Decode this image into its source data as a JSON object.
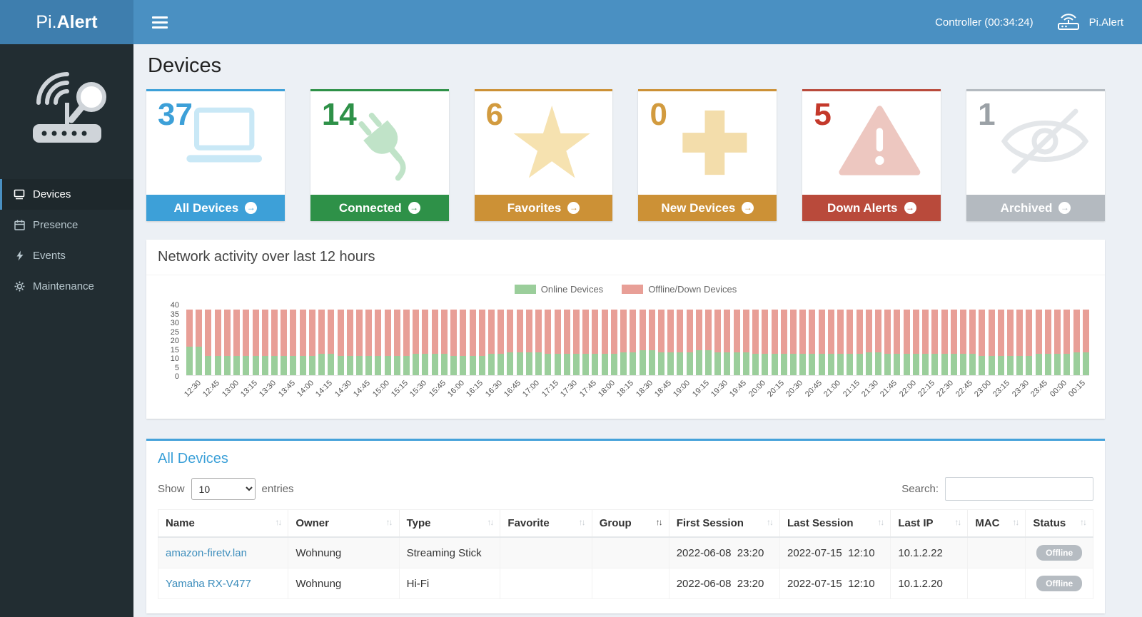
{
  "ui": {
    "arrow_icon": "→",
    "sort_icon": "↑↓"
  },
  "header": {
    "logo_prefix": "Pi.",
    "logo_suffix": "Alert",
    "controller_status": "Controller (00:34:24)",
    "brand": "Pi.Alert"
  },
  "sidebar": {
    "items": [
      {
        "label": "Devices"
      },
      {
        "label": "Presence"
      },
      {
        "label": "Events"
      },
      {
        "label": "Maintenance"
      }
    ]
  },
  "page": {
    "title": "Devices"
  },
  "cards": [
    {
      "value": "37",
      "label": "All Devices",
      "icon": "laptop-icon",
      "color": "#3da0d8",
      "value_color": "#3da0d8",
      "icon_color": "#c9e8f6"
    },
    {
      "value": "14",
      "label": "Connected",
      "icon": "plug-icon",
      "color": "#2e9148",
      "value_color": "#2e9148",
      "icon_color": "#c0e3c8"
    },
    {
      "value": "6",
      "label": "Favorites",
      "icon": "star-icon",
      "color": "#cc9136",
      "value_color": "#d29b3f",
      "icon_color": "#f6e2b0"
    },
    {
      "value": "0",
      "label": "New Devices",
      "icon": "plus-icon",
      "color": "#cc9136",
      "value_color": "#d29b3f",
      "icon_color": "#f3ddab"
    },
    {
      "value": "5",
      "label": "Down Alerts",
      "icon": "warning-triangle-icon",
      "color": "#b94a3b",
      "value_color": "#c4392b",
      "icon_color": "#edc7c0"
    },
    {
      "value": "1",
      "label": "Archived",
      "icon": "eye-slash-icon",
      "color": "#b4bac0",
      "value_color": "#9ba1a6",
      "icon_color": "#e3e6e9"
    }
  ],
  "chart_data": {
    "type": "bar",
    "stacked": true,
    "title": "Network activity over last 12 hours",
    "legend": [
      "Online Devices",
      "Offline/Down Devices"
    ],
    "colors": {
      "online": "#9bce9b",
      "offline": "#e89f97"
    },
    "ylim": [
      0,
      40
    ],
    "yticks": [
      40,
      35,
      30,
      25,
      20,
      15,
      10,
      5,
      0
    ],
    "x": [
      "12:30",
      "12:45",
      "13:00",
      "13:15",
      "13:30",
      "13:45",
      "14:00",
      "14:15",
      "14:30",
      "14:45",
      "15:00",
      "15:15",
      "15:30",
      "15:45",
      "16:00",
      "16:15",
      "16:30",
      "16:45",
      "17:00",
      "17:15",
      "17:30",
      "17:45",
      "18:00",
      "18:15",
      "18:30",
      "18:45",
      "19:00",
      "19:15",
      "19:30",
      "19:45",
      "20:00",
      "20:15",
      "20:30",
      "20:45",
      "21:00",
      "21:15",
      "21:30",
      "21:45",
      "22:00",
      "22:15",
      "22:30",
      "22:45",
      "23:00",
      "23:15",
      "23:30",
      "23:45",
      "00:00",
      "00:15"
    ],
    "series": [
      {
        "name": "Online Devices",
        "values": [
          16,
          11,
          11,
          11,
          11,
          11,
          11,
          12,
          11,
          11,
          11,
          11,
          12,
          12,
          11,
          11,
          12,
          13,
          13,
          12,
          12,
          12,
          12,
          13,
          14,
          13,
          13,
          14,
          13,
          13,
          12,
          12,
          12,
          12,
          12,
          12,
          13,
          12,
          12,
          12,
          12,
          12,
          11,
          11,
          11,
          12,
          12,
          13
        ]
      },
      {
        "name": "Offline/Down Devices",
        "values": [
          21,
          26,
          26,
          26,
          26,
          26,
          26,
          25,
          26,
          26,
          26,
          26,
          25,
          25,
          26,
          26,
          25,
          24,
          24,
          25,
          25,
          25,
          25,
          24,
          23,
          24,
          24,
          23,
          24,
          24,
          25,
          25,
          25,
          25,
          25,
          25,
          24,
          25,
          25,
          25,
          25,
          25,
          26,
          26,
          26,
          25,
          25,
          24
        ]
      }
    ]
  },
  "table_panel": {
    "title": "All Devices",
    "show_label": "Show",
    "entries_label": "entries",
    "page_size": "10",
    "search_label": "Search:",
    "columns": [
      "Name",
      "Owner",
      "Type",
      "Favorite",
      "Group",
      "First Session",
      "Last Session",
      "Last IP",
      "MAC",
      "Status"
    ],
    "rows": [
      {
        "name": "amazon-firetv.lan",
        "owner": "Wohnung",
        "type": "Streaming Stick",
        "favorite": "",
        "group": "",
        "first_session": "2022-06-08  23:20",
        "last_session": "2022-07-15  12:10",
        "last_ip": "10.1.2.22",
        "mac": "",
        "status": "Offline"
      },
      {
        "name": "Yamaha RX-V477",
        "owner": "Wohnung",
        "type": "Hi-Fi",
        "favorite": "",
        "group": "",
        "first_session": "2022-06-08  23:20",
        "last_session": "2022-07-15  12:10",
        "last_ip": "10.1.2.20",
        "mac": "",
        "status": "Offline"
      }
    ]
  }
}
